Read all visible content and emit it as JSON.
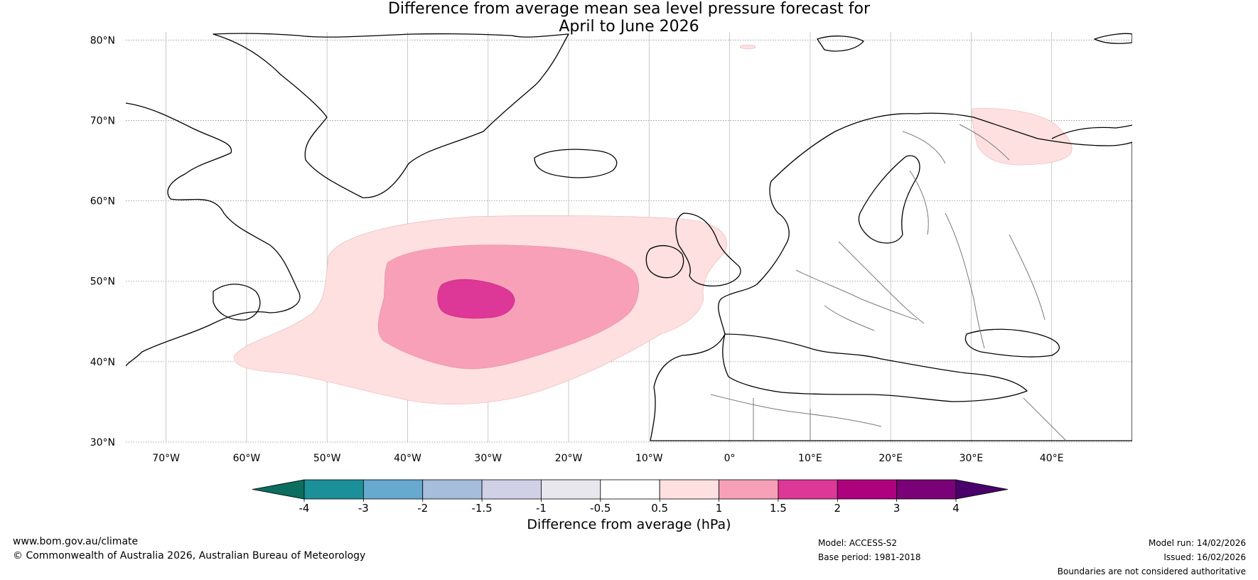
{
  "title": {
    "line1": "Difference from average mean sea level pressure forecast for",
    "line2": "April to June 2026"
  },
  "map": {
    "lon_range": [
      -75,
      50
    ],
    "lat_range": [
      30,
      81
    ],
    "lat_ticks": [
      {
        "value": 80,
        "label": "80°N"
      },
      {
        "value": 70,
        "label": "70°N"
      },
      {
        "value": 60,
        "label": "60°N"
      },
      {
        "value": 50,
        "label": "50°N"
      },
      {
        "value": 40,
        "label": "40°N"
      },
      {
        "value": 30,
        "label": "30°N"
      }
    ],
    "lon_ticks": [
      {
        "value": -70,
        "label": "70°W"
      },
      {
        "value": -60,
        "label": "60°W"
      },
      {
        "value": -50,
        "label": "50°W"
      },
      {
        "value": -40,
        "label": "40°W"
      },
      {
        "value": -30,
        "label": "30°W"
      },
      {
        "value": -20,
        "label": "20°W"
      },
      {
        "value": -10,
        "label": "10°W"
      },
      {
        "value": 0,
        "label": "0°"
      },
      {
        "value": 10,
        "label": "10°E"
      },
      {
        "value": 20,
        "label": "20°E"
      },
      {
        "value": 30,
        "label": "30°E"
      },
      {
        "value": 40,
        "label": "40°E"
      }
    ],
    "anomaly_regions": [
      {
        "level": "0.5 to 1",
        "color": "#fde0df",
        "centre_lon": -28,
        "centre_lat": 44
      },
      {
        "level": "1 to 1.5",
        "color": "#f8a0b8",
        "centre_lon": -29,
        "centre_lat": 47
      },
      {
        "level": "1.5 to 2",
        "color": "#dd3797",
        "centre_lon": -31,
        "centre_lat": 47.5
      },
      {
        "level": "0.5 to 1",
        "color": "#fde0df",
        "centre_lon": 36,
        "centre_lat": 68
      }
    ]
  },
  "colorbar": {
    "colors": [
      "#0b6e5e",
      "#1c9099",
      "#67a9cf",
      "#a6bddb",
      "#d0d1e6",
      "#e8e7ee",
      "#ffffff",
      "#fde0df",
      "#f8a0b8",
      "#dd3797",
      "#ae017e",
      "#7a0177",
      "#49006a"
    ],
    "ticks": [
      "-4",
      "-3",
      "-2",
      "-1.5",
      "-1",
      "-0.5",
      "0.5",
      "1",
      "1.5",
      "2",
      "3",
      "4"
    ],
    "label": "Difference from average (hPa)"
  },
  "footer": {
    "url": "www.bom.gov.au/climate",
    "copyright": "© Commonwealth of Australia 2026, Australian Bureau of Meteorology",
    "model": "Model: ACCESS-S2",
    "base_period": "Base period: 1981-2018",
    "model_run": "Model run: 14/02/2026",
    "issued": "Issued: 16/02/2026",
    "disclaimer": "Boundaries are not considered authoritative"
  }
}
